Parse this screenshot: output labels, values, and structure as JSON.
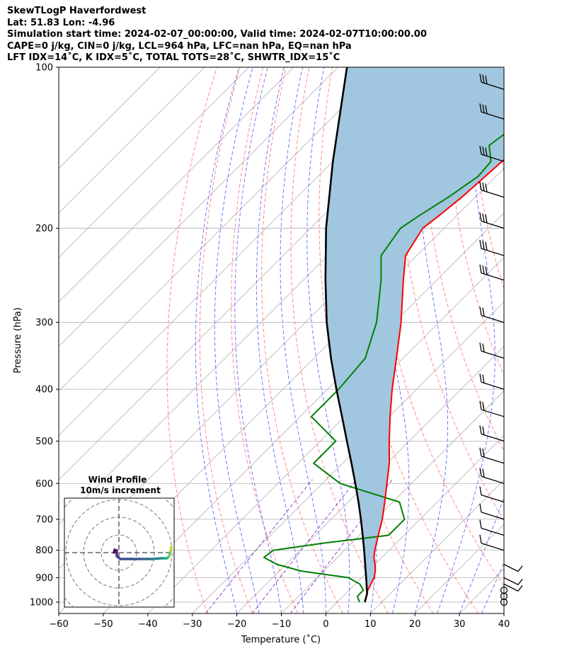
{
  "header": {
    "title": "SkewTLogP Haverfordwest",
    "location": "Lat: 51.83   Lon: -4.96",
    "times": "Simulation start time: 2024-02-07_00:00:00, Valid time: 2024-02-07T10:00:00.00",
    "indices1": "CAPE=0 j/kg, CIN=0 j/kg, LCL=964 hPa, LFC=nan hPa, EQ=nan hPa",
    "indices2": "LFT IDX=14˚C, K IDX=5˚C, TOTAL TOTS=28˚C, SHWTR_IDX=15˚C"
  },
  "chart_data": {
    "type": "line",
    "xlabel": "Temperature (˚C)",
    "ylabel": "Pressure (hPa)",
    "xlim": [
      -60,
      40
    ],
    "ylim": [
      1050,
      100
    ],
    "yscale": "log",
    "skew_deg": 45,
    "grid": true,
    "x_ticks": [
      -60,
      -50,
      -40,
      -30,
      -20,
      -10,
      0,
      10,
      20,
      30,
      40
    ],
    "x_tick_labels": [
      "−60",
      "−50",
      "−40",
      "−30",
      "−20",
      "−10",
      "0",
      "10",
      "20",
      "30",
      "40"
    ],
    "y_ticks": [
      1000,
      900,
      800,
      700,
      600,
      500,
      400,
      300,
      200,
      100
    ],
    "y_tick_labels": [
      "1000",
      "900",
      "800",
      "700",
      "600",
      "500",
      "400",
      "300",
      "200",
      "100"
    ],
    "colors": {
      "temperature": "#ff0000",
      "dewpoint": "#008000",
      "parcel": "#000000",
      "cape_fill": "#a1c6e0",
      "dry_adiabats": "#ff6b6b",
      "moist_adiabats": "#5e5eff",
      "mixing_ratio": "#9b3fd6",
      "isotherms": "#b0b0b0"
    },
    "series": [
      {
        "key": "temperature",
        "pressure": [
          1000,
          975,
          950,
          925,
          900,
          875,
          850,
          825,
          800,
          775,
          750,
          700,
          650,
          600,
          550,
          500,
          450,
          400,
          350,
          300,
          250,
          225,
          200,
          190,
          175,
          150,
          125,
          100
        ],
        "values": [
          6.2,
          5.2,
          4.2,
          3.5,
          2.8,
          1.6,
          0.0,
          -1.8,
          -3.2,
          -4.5,
          -5.8,
          -8.5,
          -11.8,
          -15.5,
          -19.5,
          -24.5,
          -29.8,
          -35.5,
          -41.5,
          -48.5,
          -57.5,
          -62.5,
          -64.8,
          -64.0,
          -63.0,
          -62.0,
          -60.0,
          -56.0
        ]
      },
      {
        "key": "dewpoint",
        "pressure": [
          1000,
          975,
          950,
          925,
          900,
          875,
          850,
          825,
          800,
          775,
          750,
          700,
          650,
          600,
          550,
          500,
          450,
          400,
          350,
          300,
          250,
          225,
          200,
          190,
          175,
          160,
          150,
          140,
          125,
          100
        ],
        "values": [
          5.0,
          3.2,
          3.2,
          1.0,
          -3.0,
          -15.0,
          -22.0,
          -26.5,
          -26.0,
          -16.0,
          -3.5,
          -3.5,
          -8.5,
          -26.0,
          -36.5,
          -36.5,
          -47.5,
          -47.5,
          -48.5,
          -54.0,
          -62.5,
          -68.0,
          -69.8,
          -68.5,
          -66.0,
          -64.0,
          -64.5,
          -68.5,
          -66.5,
          -64.0
        ]
      },
      {
        "key": "parcel",
        "pressure": [
          1000,
          964,
          900,
          850,
          800,
          750,
          700,
          650,
          600,
          550,
          500,
          450,
          400,
          350,
          300,
          250,
          200,
          150,
          100
        ],
        "values": [
          6.2,
          4.8,
          1.0,
          -2.2,
          -5.6,
          -9.3,
          -13.3,
          -17.7,
          -22.6,
          -28.0,
          -34.0,
          -40.6,
          -48.0,
          -56.2,
          -65.2,
          -75.0,
          -86.5,
          -100.0,
          -118.0
        ]
      }
    ],
    "wind_barbs_pressure": [
      1000,
      975,
      950,
      925,
      900,
      850,
      800,
      750,
      700,
      650,
      600,
      550,
      500,
      450,
      400,
      350,
      300,
      250,
      225,
      200,
      175,
      150,
      125,
      110
    ],
    "hodograph": {
      "title": "Wind Profile",
      "subtitle": "10m/s increment",
      "rings": [
        1,
        2,
        3,
        4
      ]
    }
  }
}
